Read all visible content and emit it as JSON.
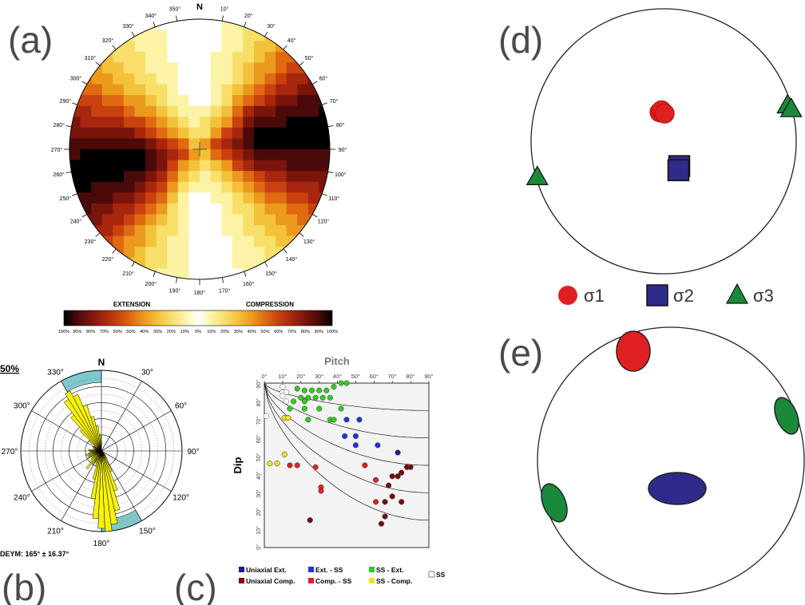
{
  "panels": {
    "a": "(a)",
    "b": "(b)",
    "c": "(c)",
    "d": "(d)",
    "e": "(e)"
  },
  "chart_data": [
    {
      "panel": "a",
      "type": "heatmap",
      "north_label": "N",
      "azimuth_ticks": [
        "10°",
        "20°",
        "30°",
        "40°",
        "50°",
        "60°",
        "70°",
        "80°",
        "90°",
        "100°",
        "110°",
        "120°",
        "130°",
        "140°",
        "150°",
        "160°",
        "170°",
        "180°",
        "190°",
        "200°",
        "210°",
        "220°",
        "230°",
        "240°",
        "250°",
        "260°",
        "270°",
        "280°",
        "290°",
        "300°",
        "310°",
        "320°",
        "330°",
        "340°",
        "350°"
      ],
      "colorbar": {
        "left_title": "EXTENSION",
        "right_title": "COMPRESSION",
        "ticks": [
          "100%",
          "90%",
          "80%",
          "70%",
          "60%",
          "50%",
          "40%",
          "30%",
          "20%",
          "10%",
          "0%",
          "10%",
          "20%",
          "30%",
          "40%",
          "50%",
          "60%",
          "70%",
          "80%",
          "90%",
          "100%"
        ],
        "colors": [
          "#000000",
          "#4a0a0a",
          "#7a150c",
          "#a8260e",
          "#c9410f",
          "#df6a12",
          "#eb9a1e",
          "#f3c23a",
          "#f8df6a",
          "#fdf3a6",
          "#ffffff"
        ]
      },
      "grid": {
        "rows": 24,
        "cols": 24,
        "compression_lobes_azimuth_deg": [
          0,
          180
        ],
        "extension_lobes_azimuth_deg": [
          80,
          255
        ]
      }
    },
    {
      "panel": "b",
      "type": "rose",
      "north_label": "N",
      "scale_label": "50%",
      "angle_labels": [
        "30°",
        "60°",
        "90°",
        "120°",
        "150°",
        "180°",
        "210°",
        "240°",
        "270°",
        "300°",
        "330°"
      ],
      "petal_azimuths_deg": [
        135,
        140,
        145,
        150,
        155,
        160,
        165,
        170,
        175,
        180,
        185,
        190,
        195,
        200,
        205,
        210,
        215,
        220,
        225,
        230,
        235,
        240,
        245,
        250,
        255,
        260,
        265,
        270,
        275,
        280,
        285,
        290,
        295,
        300,
        305,
        310,
        315,
        320,
        325,
        330,
        335,
        340,
        345,
        350,
        355,
        360
      ],
      "petal_lengths_pct": [
        3,
        4,
        6,
        8,
        14,
        26,
        38,
        46,
        50,
        48,
        42,
        30,
        18,
        10,
        8,
        6,
        10,
        14,
        10,
        8,
        6,
        7,
        9,
        8,
        10,
        8,
        7,
        6,
        8,
        5,
        4,
        5,
        6,
        4,
        5,
        10,
        18,
        28,
        38,
        42,
        38,
        30,
        22,
        16,
        10,
        6
      ],
      "highlight_range_deg": [
        150,
        180
      ],
      "mean_label": "DEYM: 165° ± 16.37°"
    },
    {
      "panel": "c",
      "type": "scatter",
      "title": "Pitch",
      "ylabel": "Dip",
      "x_ticks": [
        "0°",
        "10°",
        "20°",
        "30°",
        "40°",
        "50°",
        "60°",
        "70°",
        "80°",
        "90°"
      ],
      "y_ticks": [
        "0°",
        "10°",
        "20°",
        "30°",
        "40°",
        "50°",
        "60°",
        "70°",
        "80°",
        "90°"
      ],
      "xlim": [
        0,
        90
      ],
      "ylim": [
        0,
        90
      ],
      "series": [
        {
          "name": "Uniaxial Ext.",
          "color": "#1a1f8a",
          "points": [
            [
              73,
              52
            ]
          ]
        },
        {
          "name": "Ext. - SS",
          "color": "#2233dd",
          "points": [
            [
              45,
              70
            ],
            [
              52,
              70
            ],
            [
              44,
              61
            ],
            [
              50,
              61
            ],
            [
              50,
              56
            ],
            [
              62,
              56
            ]
          ]
        },
        {
          "name": "SS - Ext.",
          "color": "#33cc22",
          "points": [
            [
              18,
              87
            ],
            [
              22,
              86
            ],
            [
              26,
              86
            ],
            [
              30,
              86
            ],
            [
              34,
              86
            ],
            [
              38,
              88
            ],
            [
              42,
              90
            ],
            [
              45,
              90
            ],
            [
              20,
              82
            ],
            [
              24,
              82
            ],
            [
              28,
              82
            ],
            [
              32,
              82
            ],
            [
              36,
              82
            ],
            [
              16,
              80
            ],
            [
              22,
              80
            ],
            [
              14,
              76
            ],
            [
              22,
              76
            ],
            [
              30,
              76
            ],
            [
              42,
              76
            ],
            [
              24,
              70
            ],
            [
              36,
              70
            ],
            [
              38,
              70
            ]
          ]
        },
        {
          "name": "Uniaxial Comp.",
          "color": "#7a0a0a",
          "points": [
            [
              25,
              15
            ],
            [
              64,
              13
            ],
            [
              66,
              17
            ],
            [
              70,
              28
            ],
            [
              68,
              34
            ],
            [
              70,
              39
            ],
            [
              73,
              39
            ],
            [
              78,
              44
            ],
            [
              80,
              44
            ],
            [
              75,
              41
            ],
            [
              75,
              25
            ],
            [
              66,
              25
            ]
          ]
        },
        {
          "name": "Comp. - SS",
          "color": "#dd2222",
          "points": [
            [
              14,
              45
            ],
            [
              18,
              45
            ],
            [
              28,
              44
            ],
            [
              31,
              33
            ],
            [
              31,
              31
            ],
            [
              55,
              45
            ],
            [
              61,
              37
            ],
            [
              61,
              25
            ]
          ]
        },
        {
          "name": "SS - Comp.",
          "color": "#f0e020",
          "points": [
            [
              3,
              46
            ],
            [
              7,
              46
            ],
            [
              11,
              51
            ],
            [
              11,
              71
            ],
            [
              13,
              71
            ]
          ]
        },
        {
          "name": "SS",
          "color": "#ffffff",
          "points": [
            [
              1,
              72
            ],
            [
              10,
              88
            ],
            [
              10,
              85
            ],
            [
              12,
              85
            ],
            [
              10,
              83
            ],
            [
              12,
              80
            ]
          ]
        }
      ]
    },
    {
      "panel": "d",
      "type": "scatter",
      "legend": [
        {
          "name": "σ1",
          "color": "#e02020"
        },
        {
          "name": "σ2",
          "color": "#302a8a"
        },
        {
          "name": "σ3",
          "color": "#1a8a3a"
        }
      ],
      "points": [
        {
          "series": "σ1",
          "trend_deg": 352,
          "plunge_deg": 72
        },
        {
          "series": "σ1",
          "trend_deg": 356,
          "plunge_deg": 71
        },
        {
          "series": "σ1",
          "trend_deg": 2,
          "plunge_deg": 73
        },
        {
          "series": "σ2",
          "trend_deg": 148,
          "plunge_deg": 72
        },
        {
          "series": "σ2",
          "trend_deg": 153,
          "plunge_deg": 70
        },
        {
          "series": "σ3",
          "trend_deg": 74,
          "plunge_deg": 3
        },
        {
          "series": "σ3",
          "trend_deg": 76,
          "plunge_deg": 1
        },
        {
          "series": "σ3",
          "trend_deg": 254,
          "plunge_deg": 1
        }
      ]
    },
    {
      "panel": "e",
      "type": "scatter",
      "ellipses": [
        {
          "series": "σ1",
          "color": "#e02020"
        },
        {
          "series": "σ2",
          "color": "#302a8a"
        },
        {
          "series": "σ3",
          "color": "#1a8a3a"
        },
        {
          "series": "σ3",
          "color": "#1a8a3a"
        }
      ]
    }
  ]
}
